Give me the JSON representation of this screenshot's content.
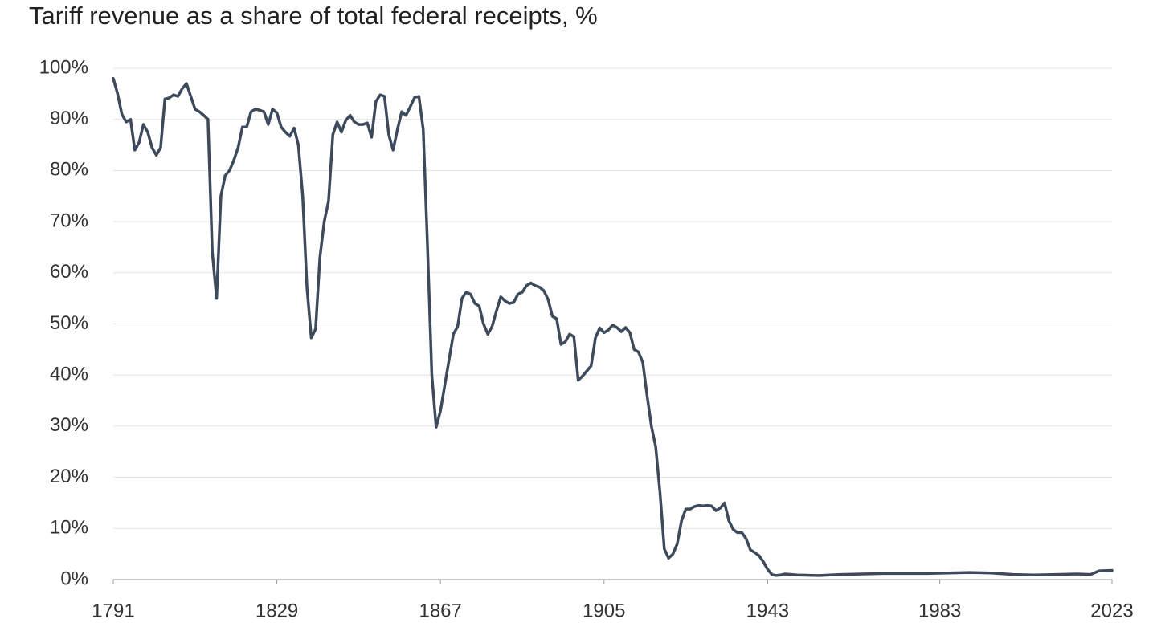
{
  "chart_data": {
    "type": "line",
    "title": "Tariff revenue as a share of total federal receipts, %",
    "x": [
      1791,
      1792,
      1793,
      1794,
      1795,
      1796,
      1797,
      1798,
      1799,
      1800,
      1801,
      1802,
      1803,
      1804,
      1805,
      1806,
      1807,
      1808,
      1809,
      1810,
      1811,
      1812,
      1813,
      1814,
      1815,
      1816,
      1817,
      1818,
      1819,
      1820,
      1821,
      1822,
      1823,
      1824,
      1825,
      1826,
      1827,
      1828,
      1829,
      1830,
      1831,
      1832,
      1833,
      1834,
      1835,
      1836,
      1837,
      1838,
      1839,
      1840,
      1841,
      1842,
      1843,
      1844,
      1845,
      1846,
      1847,
      1848,
      1849,
      1850,
      1851,
      1852,
      1853,
      1854,
      1855,
      1856,
      1857,
      1858,
      1859,
      1860,
      1861,
      1862,
      1863,
      1864,
      1865,
      1866,
      1867,
      1868,
      1869,
      1870,
      1871,
      1872,
      1873,
      1874,
      1875,
      1876,
      1877,
      1878,
      1879,
      1880,
      1881,
      1882,
      1883,
      1884,
      1885,
      1886,
      1887,
      1888,
      1889,
      1890,
      1891,
      1892,
      1893,
      1894,
      1895,
      1896,
      1897,
      1898,
      1899,
      1900,
      1901,
      1902,
      1903,
      1904,
      1905,
      1906,
      1907,
      1908,
      1909,
      1910,
      1911,
      1912,
      1913,
      1914,
      1915,
      1916,
      1917,
      1918,
      1919,
      1920,
      1921,
      1922,
      1923,
      1924,
      1925,
      1926,
      1927,
      1928,
      1929,
      1930,
      1931,
      1932,
      1933,
      1934,
      1935,
      1936,
      1937,
      1938,
      1939,
      1940,
      1941,
      1942,
      1943,
      1944,
      1945,
      1946,
      1947,
      1950,
      1955,
      1960,
      1965,
      1970,
      1975,
      1980,
      1985,
      1990,
      1995,
      2000,
      2005,
      2010,
      2015,
      2018,
      2020,
      2023
    ],
    "series": [
      {
        "color": "#3d4a5c",
        "values": [
          98,
          95,
          91,
          89.5,
          90,
          84,
          85.5,
          89,
          87.5,
          84.5,
          83,
          84.5,
          94,
          94.2,
          94.8,
          94.5,
          96,
          97,
          94.5,
          92,
          91.5,
          90.8,
          90,
          64,
          55,
          75,
          79,
          80,
          82,
          84.5,
          88.5,
          88.5,
          91.5,
          92,
          91.8,
          91.5,
          89,
          92,
          91.3,
          88.5,
          87.5,
          86.7,
          88.3,
          85,
          75,
          57,
          47.3,
          49,
          63,
          70,
          74,
          87,
          89.5,
          87.5,
          89.8,
          90.8,
          89.5,
          89,
          89,
          89.3,
          86.5,
          93.5,
          94.8,
          94.5,
          87,
          84,
          88,
          91.5,
          90.8,
          92.5,
          94.3,
          94.5,
          88,
          65,
          40,
          29.8,
          33,
          38,
          43,
          48,
          49.5,
          55,
          56.2,
          55.8,
          54,
          53.5,
          50,
          48,
          49.5,
          52.5,
          55.3,
          54.5,
          54,
          54.2,
          55.8,
          56.2,
          57.5,
          58,
          57.5,
          57.2,
          56.5,
          54.8,
          51.5,
          51,
          46,
          46.5,
          48,
          47.5,
          39,
          39.8,
          40.8,
          41.8,
          47.3,
          49.2,
          48.3,
          48.8,
          49.8,
          49.3,
          48.5,
          49.3,
          48.3,
          45,
          44.5,
          42.5,
          36,
          30,
          26,
          17,
          6,
          4.2,
          5,
          7,
          11.5,
          13.8,
          13.8,
          14.3,
          14.5,
          14.4,
          14.5,
          14.4,
          13.5,
          14,
          15,
          11.5,
          9.8,
          9.2,
          9.2,
          8,
          5.8,
          5.3,
          4.7,
          3.5,
          2,
          1,
          0.8,
          0.9,
          1.1,
          0.9,
          0.8,
          1.0,
          1.1,
          1.2,
          1.2,
          1.2,
          1.3,
          1.4,
          1.3,
          1.0,
          0.9,
          1.0,
          1.1,
          1.0,
          1.7,
          1.8
        ]
      }
    ],
    "xlim": [
      1791,
      2023
    ],
    "xticks": [
      1791,
      1829,
      1867,
      1905,
      1943,
      1983,
      2023
    ],
    "ylim": [
      0,
      100
    ],
    "yticks": [
      {
        "value": 0,
        "label": "0%"
      },
      {
        "value": 10,
        "label": "10%"
      },
      {
        "value": 20,
        "label": "20%"
      },
      {
        "value": 30,
        "label": "30%"
      },
      {
        "value": 40,
        "label": "40%"
      },
      {
        "value": 50,
        "label": "50%"
      },
      {
        "value": 60,
        "label": "60%"
      },
      {
        "value": 70,
        "label": "70%"
      },
      {
        "value": 80,
        "label": "80%"
      },
      {
        "value": 90,
        "label": "90%"
      },
      {
        "value": 100,
        "label": "100%"
      }
    ],
    "grid": true
  }
}
